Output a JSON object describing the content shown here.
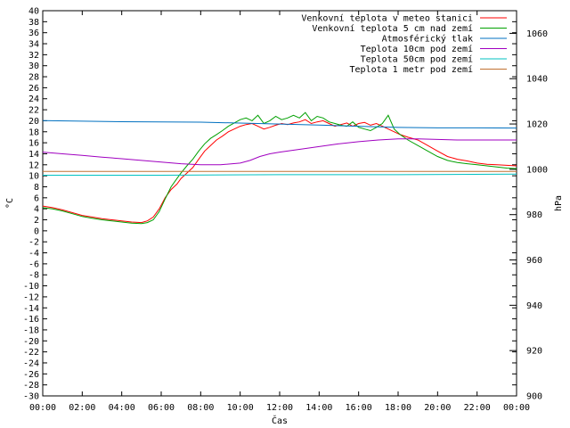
{
  "chart_data": {
    "type": "line",
    "title": "",
    "xlabel": "Čas",
    "ylabel": "°C",
    "y2label": "hPa",
    "grid": false,
    "legend_position": "top-right",
    "x_unit": "hours",
    "xlim": [
      0,
      24
    ],
    "ylim": [
      -30,
      40
    ],
    "y2lim": [
      900,
      1070
    ],
    "x_tick_labels": [
      "00:00",
      "02:00",
      "04:00",
      "06:00",
      "08:00",
      "10:00",
      "12:00",
      "14:00",
      "16:00",
      "18:00",
      "20:00",
      "22:00",
      "00:00"
    ],
    "x_tick_values": [
      0,
      2,
      4,
      6,
      8,
      10,
      12,
      14,
      16,
      18,
      20,
      22,
      24
    ],
    "y_ticks": [
      -30,
      -28,
      -26,
      -24,
      -22,
      -20,
      -18,
      -16,
      -14,
      -12,
      -10,
      -8,
      -6,
      -4,
      -2,
      0,
      2,
      4,
      6,
      8,
      10,
      12,
      14,
      16,
      18,
      20,
      22,
      24,
      26,
      28,
      30,
      32,
      34,
      36,
      38,
      40
    ],
    "y2_ticks": [
      900,
      920,
      940,
      960,
      980,
      1000,
      1020,
      1040,
      1060
    ],
    "series": [
      {
        "name": "Venkovní teplota v meteo stanici",
        "color": "#ff0000",
        "axis": "y",
        "x": [
          0,
          0.5,
          1,
          1.5,
          2,
          2.5,
          3,
          3.5,
          4,
          4.5,
          5,
          5.3,
          5.6,
          5.9,
          6.2,
          6.5,
          6.8,
          7,
          7.3,
          7.6,
          7.9,
          8.2,
          8.5,
          8.8,
          9.1,
          9.4,
          9.7,
          10,
          10.3,
          10.6,
          10.9,
          11.2,
          11.5,
          11.8,
          12.1,
          12.4,
          12.7,
          13,
          13.3,
          13.6,
          13.9,
          14.2,
          14.5,
          14.8,
          15.1,
          15.4,
          15.7,
          16,
          16.3,
          16.6,
          16.9,
          17.2,
          17.5,
          17.8,
          18.1,
          18.5,
          19,
          19.5,
          20,
          20.5,
          21,
          21.5,
          22,
          22.5,
          23,
          23.5,
          24
        ],
        "values": [
          4.5,
          4.2,
          3.8,
          3.3,
          2.8,
          2.5,
          2.2,
          2,
          1.8,
          1.6,
          1.5,
          1.8,
          2.5,
          4,
          6,
          7.5,
          8.5,
          9.5,
          10.5,
          11.5,
          13,
          14.5,
          15.5,
          16.5,
          17.2,
          18,
          18.5,
          19,
          19.3,
          19.5,
          19,
          18.5,
          18.8,
          19.2,
          19.5,
          19.3,
          19.6,
          19.8,
          20.2,
          19.5,
          19.8,
          20,
          19.5,
          19,
          19.3,
          19.6,
          19,
          19.5,
          19.7,
          19.2,
          19.5,
          19,
          18.5,
          18,
          17.5,
          17,
          16.5,
          15.5,
          14.5,
          13.5,
          13,
          12.7,
          12.3,
          12.1,
          12,
          11.9,
          11.8
        ]
      },
      {
        "name": "Venkovní teplota 5 cm nad zemí",
        "color": "#00a000",
        "axis": "y",
        "x": [
          0,
          0.5,
          1,
          1.5,
          2,
          2.5,
          3,
          3.5,
          4,
          4.5,
          5,
          5.3,
          5.6,
          5.9,
          6.2,
          6.5,
          6.8,
          7,
          7.3,
          7.6,
          7.9,
          8.2,
          8.5,
          8.8,
          9.1,
          9.4,
          9.7,
          10,
          10.3,
          10.6,
          10.9,
          11.2,
          11.5,
          11.8,
          12.1,
          12.4,
          12.7,
          13,
          13.3,
          13.6,
          13.9,
          14.2,
          14.5,
          14.8,
          15.1,
          15.4,
          15.7,
          16,
          16.3,
          16.6,
          16.9,
          17.2,
          17.5,
          17.8,
          18.1,
          18.5,
          19,
          19.5,
          20,
          20.5,
          21,
          21.5,
          22,
          22.5,
          23,
          23.5,
          24
        ],
        "values": [
          4.2,
          4,
          3.6,
          3.1,
          2.6,
          2.3,
          2,
          1.8,
          1.6,
          1.4,
          1.3,
          1.5,
          2,
          3.5,
          5.8,
          8,
          9.5,
          10.5,
          11.8,
          13,
          14.5,
          15.8,
          16.8,
          17.5,
          18.2,
          19,
          19.6,
          20.2,
          20.5,
          20,
          21,
          19.5,
          20,
          20.8,
          20.2,
          20.5,
          21,
          20.5,
          21.5,
          20,
          20.8,
          20.5,
          19.8,
          19.5,
          19.2,
          19,
          19.8,
          18.8,
          18.5,
          18.2,
          18.8,
          19.5,
          21,
          18.5,
          17.5,
          16.5,
          15.5,
          14.5,
          13.5,
          12.8,
          12.4,
          12.2,
          12,
          11.8,
          11.6,
          11.4,
          11.3
        ]
      },
      {
        "name": "Atmosférický tlak",
        "color": "#0070c0",
        "axis": "y2",
        "x": [
          0,
          4,
          8,
          12,
          14,
          16,
          18,
          20,
          22,
          24
        ],
        "values": [
          1021.5,
          1021,
          1020.8,
          1020,
          1019.5,
          1019,
          1018.5,
          1018.3,
          1018.3,
          1018.2
        ]
      },
      {
        "name": "Teplota 10cm pod zemí",
        "color": "#a000c0",
        "axis": "y",
        "x": [
          0,
          1,
          2,
          3,
          4,
          5,
          6,
          7,
          8,
          9,
          10,
          10.5,
          11,
          11.5,
          12,
          13,
          14,
          15,
          16,
          17,
          18,
          19,
          20,
          21,
          22,
          23,
          24
        ],
        "values": [
          14.3,
          14,
          13.7,
          13.4,
          13.1,
          12.8,
          12.5,
          12.2,
          12,
          12,
          12.3,
          12.8,
          13.5,
          14,
          14.3,
          14.8,
          15.3,
          15.8,
          16.2,
          16.5,
          16.7,
          16.7,
          16.6,
          16.5,
          16.5,
          16.5,
          16.5
        ]
      },
      {
        "name": "Teplota 50cm pod zemí",
        "color": "#00c0c0",
        "axis": "y",
        "x": [
          0,
          6,
          12,
          18,
          24
        ],
        "values": [
          10.1,
          10.1,
          10.2,
          10.2,
          10.3
        ]
      },
      {
        "name": "Teplota 1 metr pod zemí",
        "color": "#c07030",
        "axis": "y",
        "x": [
          0,
          12,
          24
        ],
        "values": [
          10.8,
          10.8,
          10.8
        ]
      }
    ]
  }
}
